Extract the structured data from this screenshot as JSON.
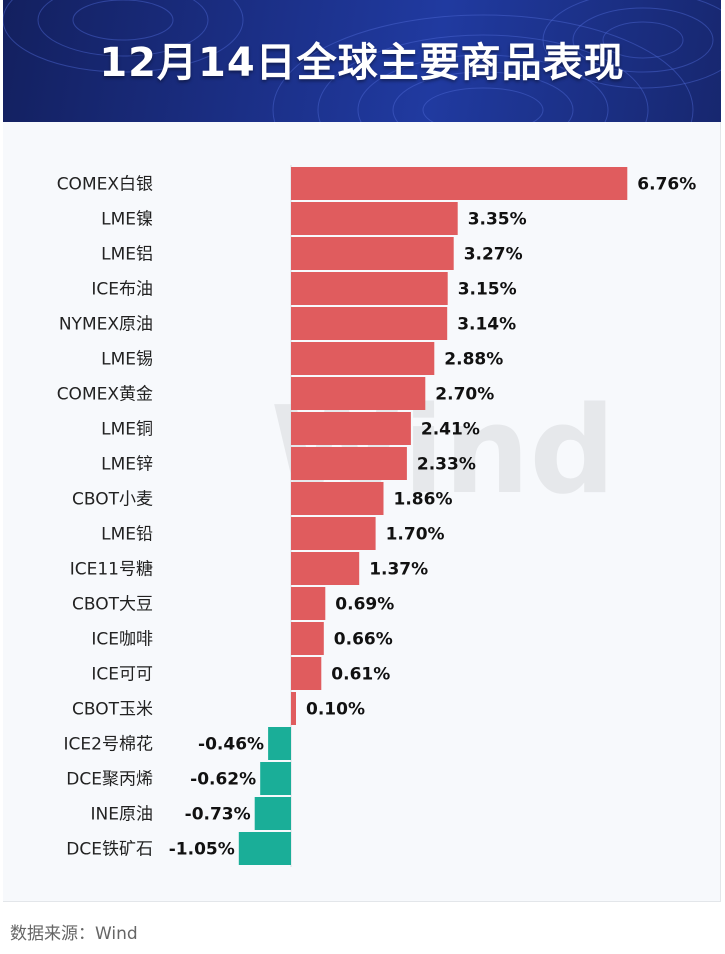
{
  "title": "12月14日全球主要商品表现",
  "source_label": "数据来源：Wind",
  "watermark_text": "Wind",
  "colors": {
    "positive": "#e05c5e",
    "negative": "#1aae98",
    "banner": "#1b2f86"
  },
  "chart_data": {
    "type": "bar",
    "orientation": "horizontal",
    "categories": [
      "COMEX白银",
      "LME镍",
      "LME铝",
      "ICE布油",
      "NYMEX原油",
      "LME锡",
      "COMEX黄金",
      "LME铜",
      "LME锌",
      "CBOT小麦",
      "LME铅",
      "ICE11号糖",
      "CBOT大豆",
      "ICE咖啡",
      "ICE可可",
      "CBOT玉米",
      "ICE2号棉花",
      "DCE聚丙烯",
      "INE原油",
      "DCE铁矿石"
    ],
    "values": [
      6.76,
      3.35,
      3.27,
      3.15,
      3.14,
      2.88,
      2.7,
      2.41,
      2.33,
      1.86,
      1.7,
      1.37,
      0.69,
      0.66,
      0.61,
      0.1,
      -0.46,
      -0.62,
      -0.73,
      -1.05
    ],
    "labels": [
      "6.76%",
      "3.35%",
      "3.27%",
      "3.15%",
      "3.14%",
      "2.88%",
      "2.70%",
      "2.41%",
      "2.33%",
      "1.86%",
      "1.70%",
      "1.37%",
      "0.69%",
      "0.66%",
      "0.61%",
      "0.10%",
      "-0.46%",
      "-0.62%",
      "-0.73%",
      "-1.05%"
    ],
    "unit": "%",
    "xlim": [
      -1.05,
      6.76
    ]
  }
}
